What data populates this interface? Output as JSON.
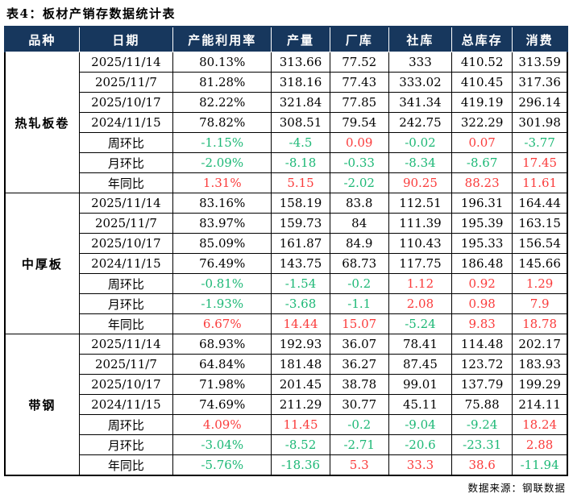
{
  "title": "表4：板材产销存数据统计表",
  "footer": {
    "source": "数据来源：钢联数据"
  },
  "colors": {
    "header_bg": "#17375D",
    "header_text": "#ffffff",
    "positive": "#FA3C3C",
    "negative": "#1DB876",
    "grid": "#000000"
  },
  "columns": [
    "品种",
    "日期",
    "产能利用率",
    "产量",
    "厂库",
    "社库",
    "总库存",
    "消费"
  ],
  "sections": [
    {
      "name": "热轧板卷",
      "rows": [
        {
          "label": "2025/11/14",
          "change": false,
          "values": [
            "80.13%",
            "313.66",
            "77.52",
            "333",
            "410.52",
            "313.59"
          ]
        },
        {
          "label": "2025/11/7",
          "change": false,
          "values": [
            "81.28%",
            "318.16",
            "77.43",
            "333.02",
            "410.45",
            "317.36"
          ]
        },
        {
          "label": "2025/10/17",
          "change": false,
          "values": [
            "82.22%",
            "321.84",
            "77.85",
            "341.34",
            "419.19",
            "296.14"
          ]
        },
        {
          "label": "2024/11/15",
          "change": false,
          "values": [
            "78.82%",
            "308.51",
            "79.54",
            "242.75",
            "322.29",
            "301.98"
          ]
        },
        {
          "label": "周环比",
          "change": true,
          "values": [
            "-1.15%",
            "-4.5",
            "0.09",
            "-0.02",
            "0.07",
            "-3.77"
          ]
        },
        {
          "label": "月环比",
          "change": true,
          "values": [
            "-2.09%",
            "-8.18",
            "-0.33",
            "-8.34",
            "-8.67",
            "17.45"
          ]
        },
        {
          "label": "年同比",
          "change": true,
          "values": [
            "1.31%",
            "5.15",
            "-2.02",
            "90.25",
            "88.23",
            "11.61"
          ]
        }
      ]
    },
    {
      "name": "中厚板",
      "rows": [
        {
          "label": "2025/11/14",
          "change": false,
          "values": [
            "83.16%",
            "158.19",
            "83.8",
            "112.51",
            "196.31",
            "164.44"
          ]
        },
        {
          "label": "2025/11/7",
          "change": false,
          "values": [
            "83.97%",
            "159.73",
            "84",
            "111.39",
            "195.39",
            "163.15"
          ]
        },
        {
          "label": "2025/10/17",
          "change": false,
          "values": [
            "85.09%",
            "161.87",
            "84.9",
            "110.43",
            "195.33",
            "156.54"
          ]
        },
        {
          "label": "2024/11/15",
          "change": false,
          "values": [
            "76.49%",
            "143.75",
            "68.73",
            "117.75",
            "186.48",
            "145.66"
          ]
        },
        {
          "label": "周环比",
          "change": true,
          "values": [
            "-0.81%",
            "-1.54",
            "-0.2",
            "1.12",
            "0.92",
            "1.29"
          ]
        },
        {
          "label": "月环比",
          "change": true,
          "values": [
            "-1.93%",
            "-3.68",
            "-1.1",
            "2.08",
            "0.98",
            "7.9"
          ]
        },
        {
          "label": "年同比",
          "change": true,
          "values": [
            "6.67%",
            "14.44",
            "15.07",
            "-5.24",
            "9.83",
            "18.78"
          ]
        }
      ]
    },
    {
      "name": "带钢",
      "rows": [
        {
          "label": "2025/11/14",
          "change": false,
          "values": [
            "68.93%",
            "192.93",
            "36.07",
            "78.41",
            "114.48",
            "202.17"
          ]
        },
        {
          "label": "2025/11/7",
          "change": false,
          "values": [
            "64.84%",
            "181.48",
            "36.27",
            "87.45",
            "123.72",
            "183.93"
          ]
        },
        {
          "label": "2025/10/17",
          "change": false,
          "values": [
            "71.98%",
            "201.45",
            "38.78",
            "99.01",
            "137.79",
            "199.29"
          ]
        },
        {
          "label": "2024/11/15",
          "change": false,
          "values": [
            "74.69%",
            "211.29",
            "30.77",
            "45.11",
            "75.88",
            "214.11"
          ]
        },
        {
          "label": "周环比",
          "change": true,
          "values": [
            "4.09%",
            "11.45",
            "-0.2",
            "-9.04",
            "-9.24",
            "18.24"
          ]
        },
        {
          "label": "月环比",
          "change": true,
          "values": [
            "-3.04%",
            "-8.52",
            "-2.71",
            "-20.6",
            "-23.31",
            "2.88"
          ]
        },
        {
          "label": "年同比",
          "change": true,
          "values": [
            "-5.76%",
            "-18.36",
            "5.3",
            "33.3",
            "38.6",
            "-11.94"
          ]
        }
      ]
    }
  ]
}
